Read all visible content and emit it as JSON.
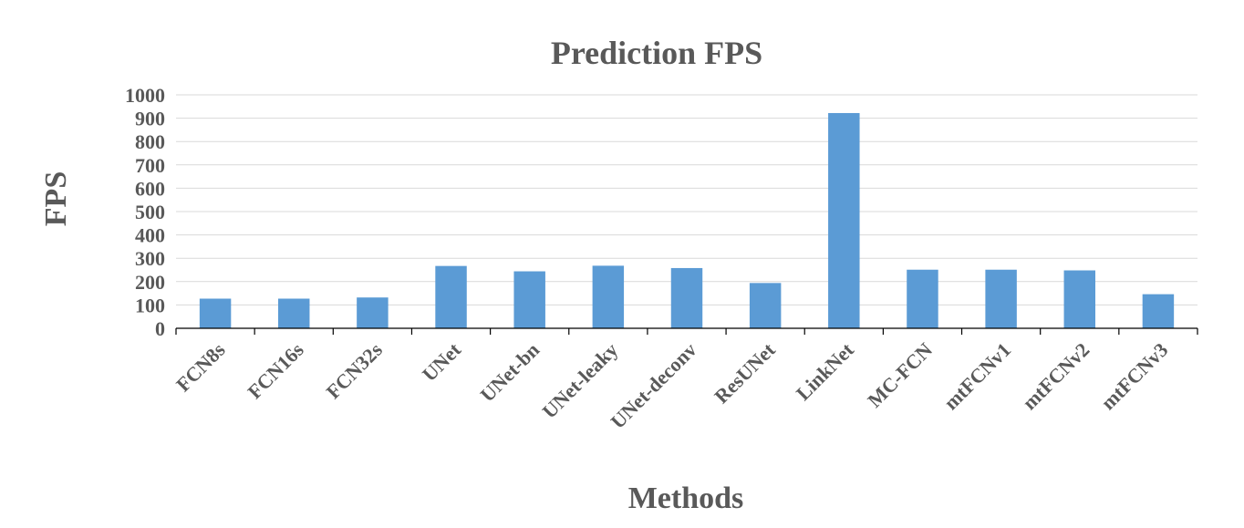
{
  "chart_data": {
    "type": "bar",
    "title": "Prediction FPS",
    "xlabel": "Methods",
    "ylabel": "FPS",
    "ylim": [
      0,
      1000
    ],
    "yticks": [
      0,
      100,
      200,
      300,
      400,
      500,
      600,
      700,
      800,
      900,
      1000
    ],
    "grid": true,
    "legend": "none",
    "bar_color": "#5b9bd5",
    "categories": [
      "FCN8s",
      "FCN16s",
      "FCN32s",
      "UNet",
      "UNet-bn",
      "UNet-leaky",
      "UNet-deconv",
      "ResUNet",
      "LinkNet",
      "MC-FCN",
      "mtFCNv1",
      "mtFCNv2",
      "mtFCNv3"
    ],
    "values": [
      127,
      127,
      132,
      267,
      244,
      268,
      258,
      194,
      922,
      251,
      251,
      248,
      146
    ]
  }
}
